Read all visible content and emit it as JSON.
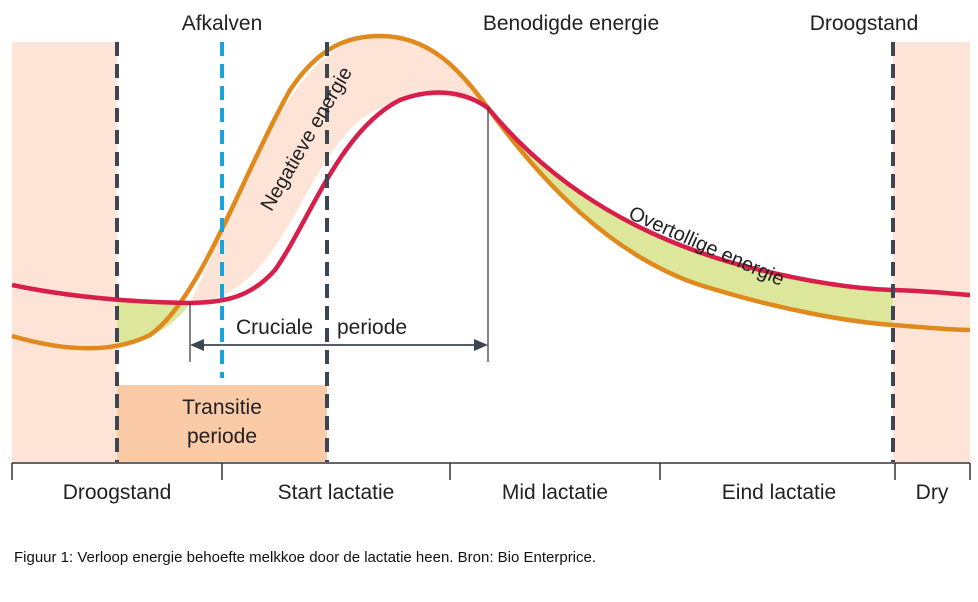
{
  "top_labels": {
    "calving": "Afkalven",
    "required_energy": "Benodigde energie",
    "dry_period": "Droogstand"
  },
  "curve_labels": {
    "negative_energy": "Negatieve energie",
    "surplus_energy": "Overtollige energie"
  },
  "crucial_period": {
    "word1": "Cruciale",
    "word2": "periode"
  },
  "transition": {
    "line1": "Transitie",
    "line2": "periode"
  },
  "phases": [
    "Droogstand",
    "Start lactatie",
    "Mid lactatie",
    "Eind lactatie",
    "Dry"
  ],
  "caption": "Figuur 1: Verloop energie behoefte melkkoe door de lactatie heen. Bron: Bio Enterprice.",
  "colors": {
    "required_energy_curve": "#e08a1e",
    "energy_intake_curve": "#d81e4a",
    "negative_fill": "#fde4d6",
    "surplus_fill": "#dde79b",
    "dry_band": "#fde4d6",
    "transition_box": "#fbcaa6",
    "dashed_dark": "#3d4652",
    "dashed_calving": "#1aa3d8"
  }
}
